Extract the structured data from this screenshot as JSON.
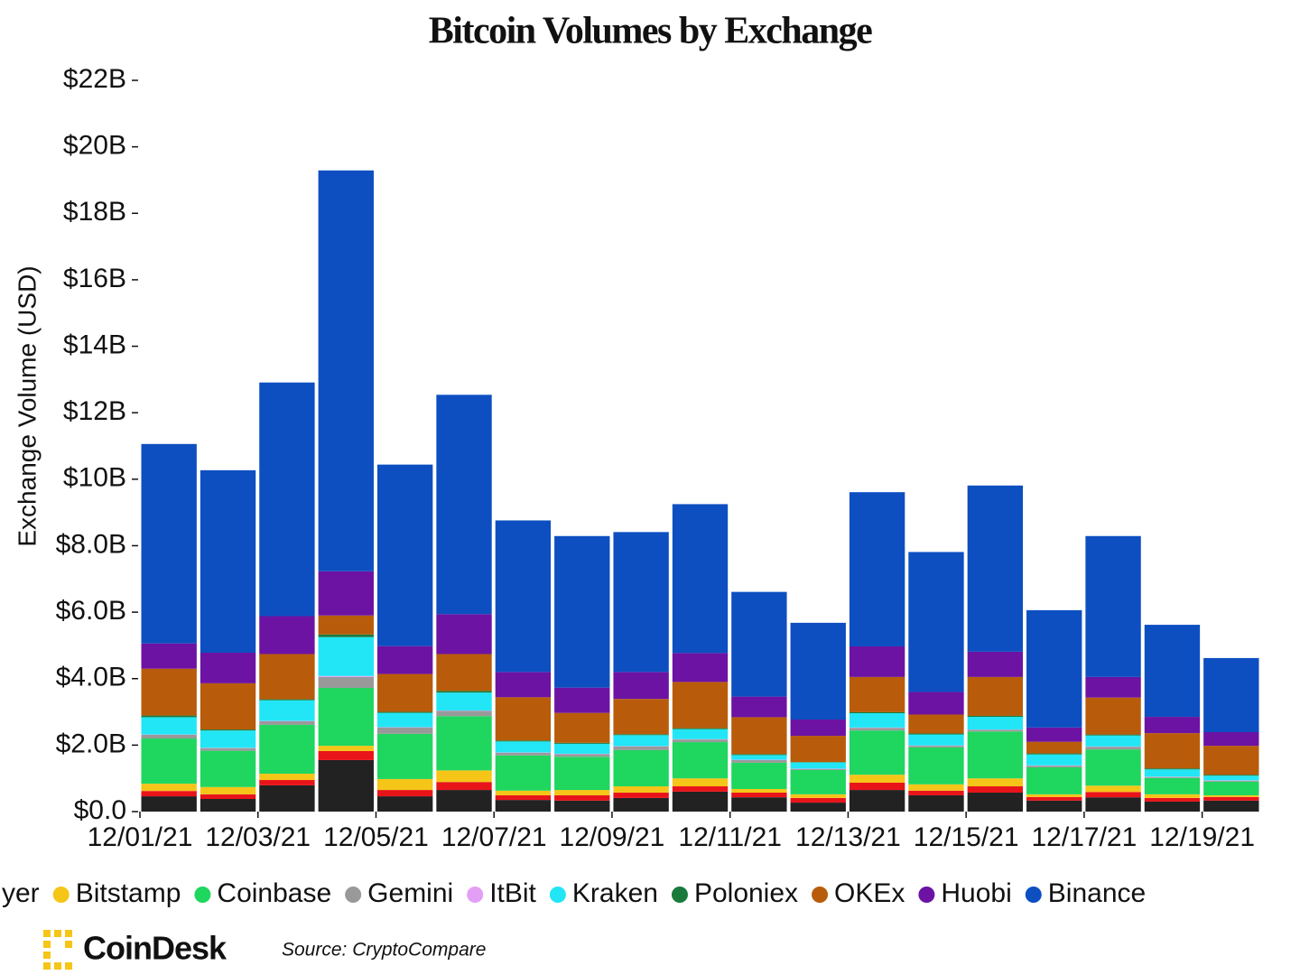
{
  "chart_data": {
    "type": "stacked-bar",
    "title": "Bitcoin Volumes by Exchange",
    "y_label": "Exchange Volume (USD)",
    "source": "Source: CryptoCompare",
    "brand": "CoinDesk",
    "categories": [
      "12/01/21",
      null,
      "12/03/21",
      null,
      "12/05/21",
      null,
      "12/07/21",
      null,
      "12/09/21",
      null,
      "12/11/21",
      null,
      "12/13/21",
      null,
      "12/15/21",
      null,
      "12/17/21",
      null,
      "12/19/21"
    ],
    "ylim": [
      0,
      22000000000.0
    ],
    "yticks": [
      {
        "value": 0,
        "label": "$0.0"
      },
      {
        "value": 2000000000.0,
        "label": "$2.0B"
      },
      {
        "value": 4000000000.0,
        "label": "$4.0B"
      },
      {
        "value": 6000000000.0,
        "label": "$6.0B"
      },
      {
        "value": 8000000000.0,
        "label": "$8.0B"
      },
      {
        "value": 10000000000.0,
        "label": "$10B"
      },
      {
        "value": 12000000000.0,
        "label": "$12B"
      },
      {
        "value": 14000000000.0,
        "label": "$14B"
      },
      {
        "value": 16000000000.0,
        "label": "$16B"
      },
      {
        "value": 18000000000.0,
        "label": "$18B"
      },
      {
        "value": 20000000000.0,
        "label": "$20B"
      },
      {
        "value": 22000000000.0,
        "label": "$22B"
      }
    ],
    "series": [
      {
        "name": null,
        "color": "#222222",
        "values": [
          460000000.0,
          380000000.0,
          790000000.0,
          1550000000.0,
          460000000.0,
          650000000.0,
          350000000.0,
          330000000.0,
          410000000.0,
          600000000.0,
          430000000.0,
          270000000.0,
          650000000.0,
          490000000.0,
          570000000.0,
          330000000.0,
          430000000.0,
          300000000.0,
          330000000.0
        ]
      },
      {
        "name": "yer",
        "color": "#e8141a",
        "values": [
          160000000.0,
          140000000.0,
          160000000.0,
          270000000.0,
          190000000.0,
          240000000.0,
          140000000.0,
          160000000.0,
          160000000.0,
          160000000.0,
          140000000.0,
          140000000.0,
          220000000.0,
          140000000.0,
          190000000.0,
          110000000.0,
          160000000.0,
          110000000.0,
          110000000.0
        ]
      },
      {
        "name": "Bitstamp",
        "color": "#f5c518",
        "values": [
          220000000.0,
          220000000.0,
          190000000.0,
          160000000.0,
          330000000.0,
          350000000.0,
          140000000.0,
          160000000.0,
          190000000.0,
          240000000.0,
          110000000.0,
          110000000.0,
          240000000.0,
          190000000.0,
          240000000.0,
          80000000.0,
          190000000.0,
          110000000.0,
          50000000.0
        ]
      },
      {
        "name": "Coinbase",
        "color": "#1fd65f",
        "values": [
          1360000000.0,
          1090000000.0,
          1470000000.0,
          1740000000.0,
          1360000000.0,
          1630000000.0,
          1060000000.0,
          1000000000.0,
          1090000000.0,
          1090000000.0,
          790000000.0,
          730000000.0,
          1330000000.0,
          1110000000.0,
          1410000000.0,
          810000000.0,
          1090000000.0,
          490000000.0,
          410000000.0
        ]
      },
      {
        "name": "Gemini",
        "color": "#999999",
        "values": [
          110000000.0,
          80000000.0,
          110000000.0,
          330000000.0,
          190000000.0,
          160000000.0,
          80000000.0,
          80000000.0,
          110000000.0,
          80000000.0,
          80000000.0,
          30000000.0,
          80000000.0,
          50000000.0,
          50000000.0,
          50000000.0,
          80000000.0,
          30000000.0,
          30000000.0
        ]
      },
      {
        "name": "ItBit",
        "color": "#e39ff6",
        "values": [
          10000000.0,
          10000000.0,
          10000000.0,
          30000000.0,
          10000000.0,
          10000000.0,
          10000000.0,
          10000000.0,
          10000000.0,
          10000000.0,
          10000000.0,
          10000000.0,
          10000000.0,
          10000000.0,
          10000000.0,
          10000000.0,
          10000000.0,
          10000000.0,
          10000000.0
        ]
      },
      {
        "name": "Kraken",
        "color": "#22e6f5",
        "values": [
          520000000.0,
          520000000.0,
          620000000.0,
          1170000000.0,
          430000000.0,
          540000000.0,
          330000000.0,
          300000000.0,
          330000000.0,
          300000000.0,
          140000000.0,
          190000000.0,
          430000000.0,
          330000000.0,
          380000000.0,
          330000000.0,
          330000000.0,
          220000000.0,
          140000000.0
        ]
      },
      {
        "name": "Poloniex",
        "color": "#1a7a3c",
        "values": [
          50000000.0,
          30000000.0,
          30000000.0,
          80000000.0,
          30000000.0,
          50000000.0,
          30000000.0,
          30000000.0,
          30000000.0,
          30000000.0,
          30000000.0,
          10000000.0,
          30000000.0,
          30000000.0,
          30000000.0,
          30000000.0,
          30000000.0,
          30000000.0,
          30000000.0
        ]
      },
      {
        "name": "OKEx",
        "color": "#b85c0b",
        "values": [
          1410000000.0,
          1390000000.0,
          1360000000.0,
          570000000.0,
          1140000000.0,
          1110000000.0,
          1300000000.0,
          900000000.0,
          1060000000.0,
          1390000000.0,
          1110000000.0,
          790000000.0,
          1060000000.0,
          570000000.0,
          1170000000.0,
          350000000.0,
          1110000000.0,
          1060000000.0,
          870000000.0
        ]
      },
      {
        "name": "Huobi",
        "color": "#6c13a3",
        "values": [
          760000000.0,
          920000000.0,
          1140000000.0,
          1330000000.0,
          840000000.0,
          1200000000.0,
          760000000.0,
          760000000.0,
          810000000.0,
          870000000.0,
          620000000.0,
          490000000.0,
          920000000.0,
          680000000.0,
          760000000.0,
          430000000.0,
          620000000.0,
          490000000.0,
          410000000.0
        ]
      },
      {
        "name": "Binance",
        "color": "#0d4fc1",
        "values": [
          6000000000.0,
          5490000000.0,
          7030000000.0,
          12060000000.0,
          5460000000.0,
          6600000000.0,
          4560000000.0,
          4560000000.0,
          4210000000.0,
          4480000000.0,
          3150000000.0,
          2910000000.0,
          4640000000.0,
          4210000000.0,
          5000000000.0,
          3530000000.0,
          4240000000.0,
          2770000000.0,
          2230000000.0
        ]
      }
    ]
  }
}
